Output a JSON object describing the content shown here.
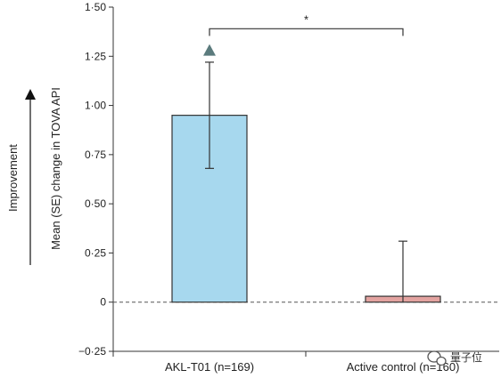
{
  "chart_data": {
    "type": "bar",
    "categories": [
      "AKL-T01 (n=169)",
      "Active control (n=160)"
    ],
    "values": [
      0.95,
      0.03
    ],
    "errors": [
      0.27,
      0.28
    ],
    "ylabel": "Mean (SE) change in TOVA API",
    "ylabel_outer": "Improvement",
    "ylim": [
      -0.25,
      1.5
    ],
    "yticks": [
      1.5,
      1.25,
      1.0,
      0.75,
      0.5,
      0.25,
      0,
      -0.25
    ],
    "ytick_labels": [
      "1·50",
      "1·25",
      "1·00",
      "0·75",
      "0·50",
      "0·25",
      "0",
      "−0·25"
    ],
    "bar_colors": [
      "#a7d8ee",
      "#e3a3a0"
    ],
    "marker": {
      "type": "triangle",
      "category": "AKL-T01 (n=169)",
      "value": 1.28,
      "color": "#5b7b7d"
    },
    "significance": {
      "label": "*",
      "from": 0,
      "to": 1,
      "y": 1.39
    },
    "zero_line": "dashed",
    "grid": false
  },
  "watermark": {
    "text": "量子位",
    "icon": "wechat-icon"
  }
}
